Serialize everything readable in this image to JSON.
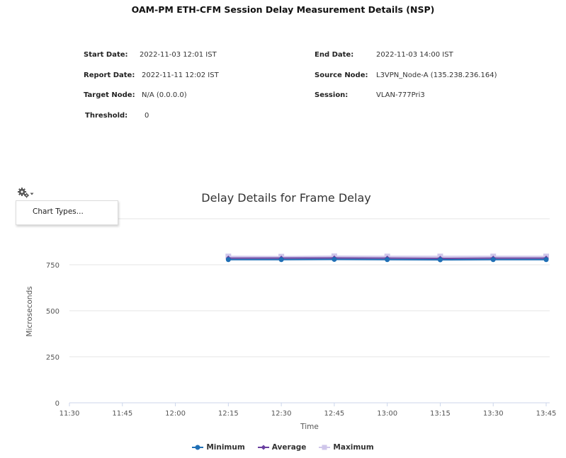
{
  "report": {
    "title": "OAM-PM ETH-CFM Session Delay Measurement Details (NSP)"
  },
  "meta": {
    "start_date_label": "Start Date:",
    "start_date": "2022-11-03 12:01 IST",
    "end_date_label": "End Date:",
    "end_date": "2022-11-03 14:00 IST",
    "report_date_label": "Report Date:",
    "report_date": "2022-11-11 12:02 IST",
    "source_node_label": "Source Node:",
    "source_node": "L3VPN_Node-A (135.238.236.164)",
    "target_node_label": "Target Node:",
    "target_node": "N/A (0.0.0.0)",
    "session_label": "Session:",
    "session": "VLAN-777Pri3",
    "threshold_label": "Threshold:",
    "threshold": "0"
  },
  "chart_menu": {
    "gear_icon": "gear-icon",
    "item": "Chart Types..."
  },
  "colors": {
    "minimum": "#1f6fb5",
    "average": "#6a3fa0",
    "maximum": "#cfc6ea",
    "grid": "#e6e6e6",
    "axis": "#ccd6eb"
  },
  "chart_data": {
    "type": "line",
    "title": "Delay Details for Frame Delay",
    "xlabel": "Time",
    "ylabel": "Microseconds",
    "x_ticks": [
      "11:30",
      "11:45",
      "12:00",
      "12:15",
      "12:30",
      "12:45",
      "13:00",
      "13:15",
      "13:30",
      "13:45"
    ],
    "y_ticks": [
      0,
      250,
      500,
      750
    ],
    "ylim": [
      0,
      1000
    ],
    "xlim": [
      "11:30",
      "13:46"
    ],
    "x": [
      "12:15",
      "12:30",
      "12:45",
      "13:00",
      "13:15",
      "13:30",
      "13:45"
    ],
    "series": [
      {
        "name": "Minimum",
        "values": [
          778,
          778,
          779,
          778,
          777,
          778,
          778
        ]
      },
      {
        "name": "Average",
        "values": [
          786,
          786,
          787,
          786,
          785,
          786,
          786
        ]
      },
      {
        "name": "Maximum",
        "values": [
          795,
          794,
          796,
          795,
          795,
          795,
          795
        ]
      }
    ],
    "legend_position": "bottom-center",
    "grid": true
  }
}
